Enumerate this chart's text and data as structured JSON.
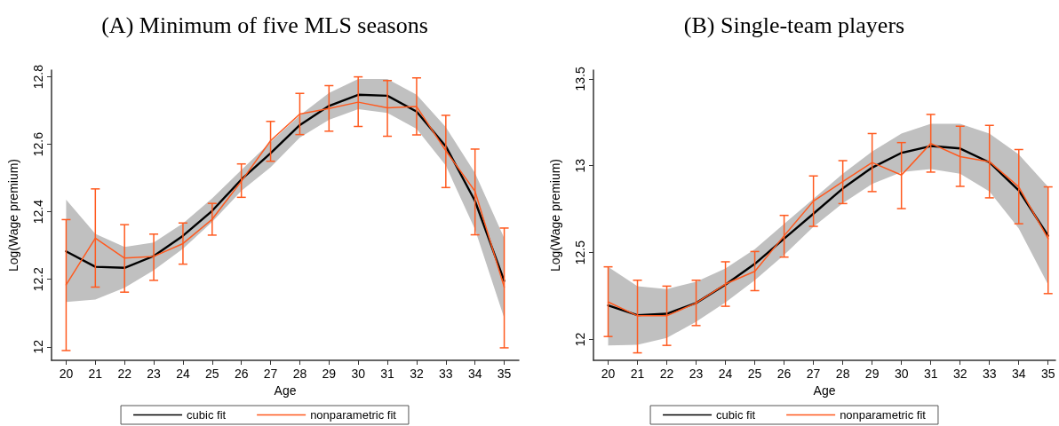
{
  "chart_data": [
    {
      "type": "line",
      "title": "(A) Minimum of five MLS seasons",
      "xlabel": "Age",
      "ylabel": "Log(Wage premium)",
      "x": [
        20,
        21,
        22,
        23,
        24,
        25,
        26,
        27,
        28,
        29,
        30,
        31,
        32,
        33,
        34,
        35
      ],
      "xlim": [
        19.5,
        35.5
      ],
      "xticks": [
        20,
        21,
        22,
        23,
        24,
        25,
        26,
        27,
        28,
        29,
        30,
        31,
        32,
        33,
        34,
        35
      ],
      "ylim": [
        11.96,
        12.82
      ],
      "yticks": [
        12,
        12.2,
        12.4,
        12.6,
        12.8
      ],
      "grid": false,
      "legend": "bottom",
      "marker": "none",
      "line_style": "solid",
      "series": [
        {
          "name": "cubic fit",
          "color": "#000000",
          "values": [
            12.283,
            12.237,
            12.234,
            12.269,
            12.329,
            12.403,
            12.496,
            12.574,
            12.657,
            12.714,
            12.747,
            12.744,
            12.697,
            12.594,
            12.432,
            12.195
          ],
          "lower": [
            12.133,
            12.14,
            12.175,
            12.227,
            12.291,
            12.37,
            12.462,
            12.532,
            12.62,
            12.673,
            12.704,
            12.693,
            12.646,
            12.537,
            12.348,
            12.085
          ],
          "upper": [
            12.436,
            12.335,
            12.296,
            12.309,
            12.366,
            12.44,
            12.524,
            12.607,
            12.686,
            12.752,
            12.794,
            12.794,
            12.747,
            12.651,
            12.515,
            12.322
          ]
        },
        {
          "name": "nonparametric fit",
          "color": "#ff5a1f",
          "values": [
            12.184,
            12.322,
            12.263,
            12.268,
            12.306,
            12.378,
            12.491,
            12.611,
            12.69,
            12.706,
            12.725,
            12.708,
            12.712,
            12.581,
            12.461,
            12.177
          ],
          "errors": [
            [
              11.989,
              12.377
            ],
            [
              12.177,
              12.468
            ],
            [
              12.162,
              12.362
            ],
            [
              12.197,
              12.334
            ],
            [
              12.245,
              12.367
            ],
            [
              12.331,
              12.425
            ],
            [
              12.443,
              12.542
            ],
            [
              12.55,
              12.668
            ],
            [
              12.629,
              12.751
            ],
            [
              12.639,
              12.774
            ],
            [
              12.653,
              12.8
            ],
            [
              12.624,
              12.789
            ],
            [
              12.628,
              12.797
            ],
            [
              12.472,
              12.686
            ],
            [
              12.332,
              12.586
            ],
            [
              11.997,
              12.352
            ]
          ]
        }
      ]
    },
    {
      "type": "line",
      "title": "(B) Single-team players",
      "xlabel": "Age",
      "ylabel": "Log(Wage premium)",
      "x": [
        20,
        21,
        22,
        23,
        24,
        25,
        26,
        27,
        28,
        29,
        30,
        31,
        32,
        33,
        34,
        35
      ],
      "xlim": [
        19.5,
        35.25
      ],
      "xticks": [
        20,
        21,
        22,
        23,
        24,
        25,
        26,
        27,
        28,
        29,
        30,
        31,
        32,
        33,
        34,
        35
      ],
      "ylim": [
        11.88,
        13.55
      ],
      "yticks": [
        12,
        12.5,
        13,
        13.5
      ],
      "grid": false,
      "legend": "bottom",
      "marker": "none",
      "line_style": "solid",
      "series": [
        {
          "name": "cubic fit",
          "color": "#000000",
          "values": [
            12.196,
            12.14,
            12.148,
            12.21,
            12.315,
            12.435,
            12.58,
            12.724,
            12.869,
            12.989,
            13.074,
            13.113,
            13.099,
            13.019,
            12.857,
            12.597
          ],
          "lower": [
            11.966,
            11.969,
            12.009,
            12.102,
            12.213,
            12.341,
            12.486,
            12.648,
            12.784,
            12.895,
            12.963,
            12.98,
            12.954,
            12.852,
            12.639,
            12.315
          ],
          "upper": [
            12.418,
            12.307,
            12.29,
            12.332,
            12.409,
            12.52,
            12.665,
            12.81,
            12.954,
            13.082,
            13.185,
            13.241,
            13.241,
            13.185,
            13.065,
            12.878
          ]
        },
        {
          "name": "nonparametric fit",
          "color": "#ff5a1f",
          "values": [
            12.216,
            12.136,
            12.136,
            12.21,
            12.319,
            12.392,
            12.597,
            12.796,
            12.908,
            13.018,
            12.946,
            13.128,
            13.052,
            13.023,
            12.878,
            12.58
          ],
          "errors": [
            [
              12.017,
              12.418
            ],
            [
              11.923,
              12.341
            ],
            [
              11.966,
              12.307
            ],
            [
              12.08,
              12.341
            ],
            [
              12.191,
              12.447
            ],
            [
              12.281,
              12.506
            ],
            [
              12.474,
              12.714
            ],
            [
              12.651,
              12.941
            ],
            [
              12.782,
              13.029
            ],
            [
              12.851,
              13.185
            ],
            [
              12.753,
              13.133
            ],
            [
              12.963,
              13.295
            ],
            [
              12.881,
              13.227
            ],
            [
              12.815,
              13.232
            ],
            [
              12.666,
              13.093
            ],
            [
              12.264,
              12.878
            ]
          ]
        }
      ]
    }
  ]
}
